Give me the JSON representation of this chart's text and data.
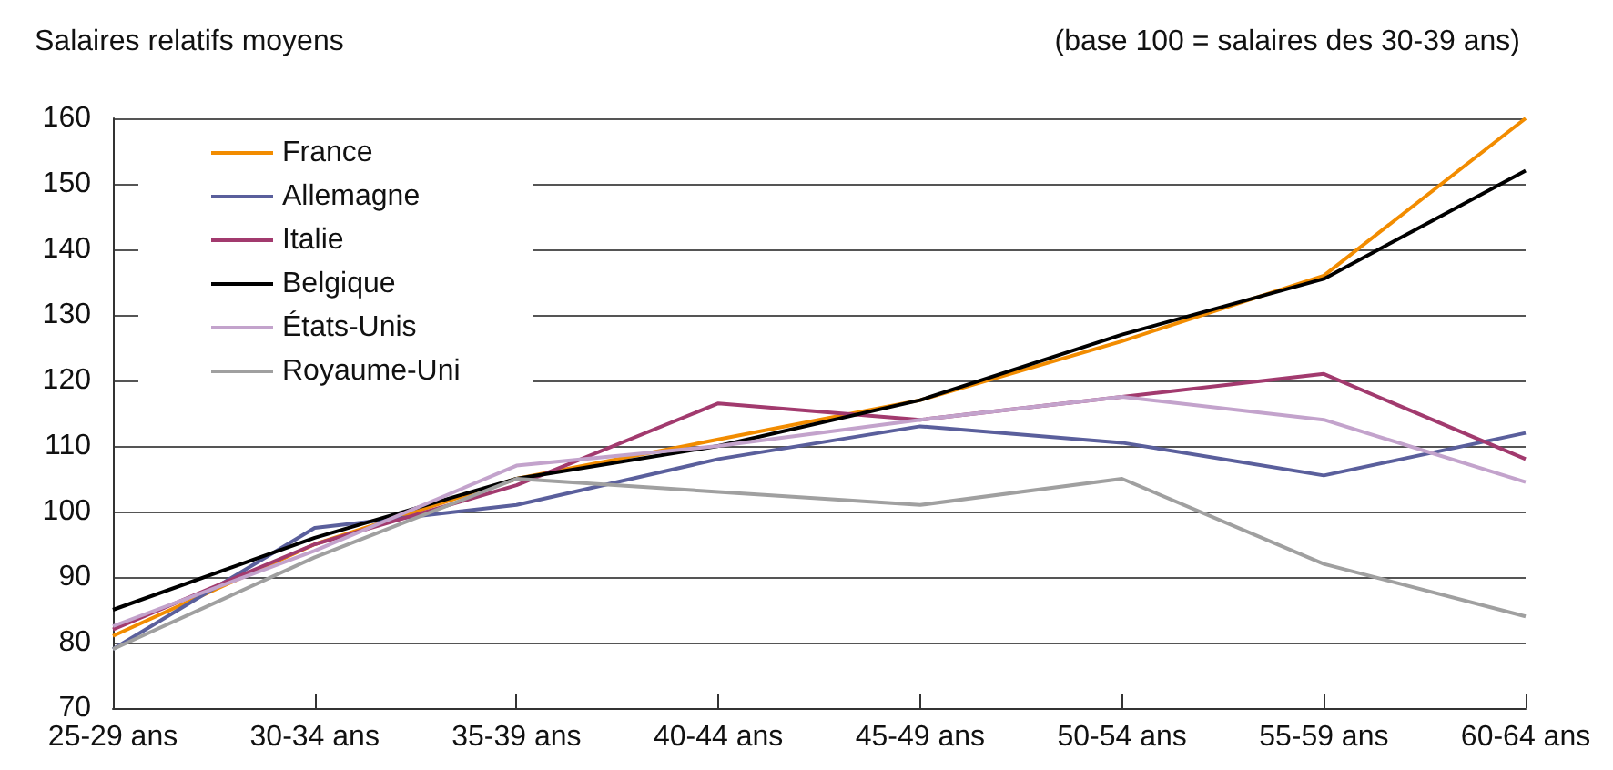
{
  "chart_data": {
    "type": "line",
    "title": "Salaires relatifs moyens",
    "annotations": [
      "(base 100 = salaires des 30-39 ans)"
    ],
    "categories": [
      "25-29 ans",
      "30-34 ans",
      "35-39 ans",
      "40-44 ans",
      "45-49 ans",
      "50-54 ans",
      "55-59 ans",
      "60-64 ans"
    ],
    "series": [
      {
        "name": "France",
        "color": "#f28c00",
        "values": [
          81,
          95,
          105,
          111,
          117,
          126,
          136,
          160
        ]
      },
      {
        "name": "Allemagne",
        "color": "#5a5f9c",
        "values": [
          79,
          97.5,
          101,
          108,
          113,
          110.5,
          105.5,
          112
        ]
      },
      {
        "name": "Italie",
        "color": "#a23a6e",
        "values": [
          82,
          95,
          104,
          116.5,
          114,
          117.5,
          121,
          108
        ]
      },
      {
        "name": "Belgique",
        "color": "#000000",
        "values": [
          85,
          96,
          105,
          110,
          117,
          127,
          135.5,
          152
        ]
      },
      {
        "name": "États-Unis",
        "color": "#c3a3cc",
        "values": [
          82.5,
          94,
          107,
          110,
          114,
          117.5,
          114,
          104.5
        ]
      },
      {
        "name": "Royaume-Uni",
        "color": "#a0a0a0",
        "values": [
          79,
          93,
          105,
          103,
          101,
          105,
          92,
          84
        ]
      }
    ],
    "ylim": [
      70,
      160
    ],
    "yticks": [
      70,
      80,
      90,
      100,
      110,
      120,
      130,
      140,
      150,
      160
    ],
    "grid": "y",
    "legend": "top left",
    "marker": "none",
    "line_style": "solid"
  }
}
